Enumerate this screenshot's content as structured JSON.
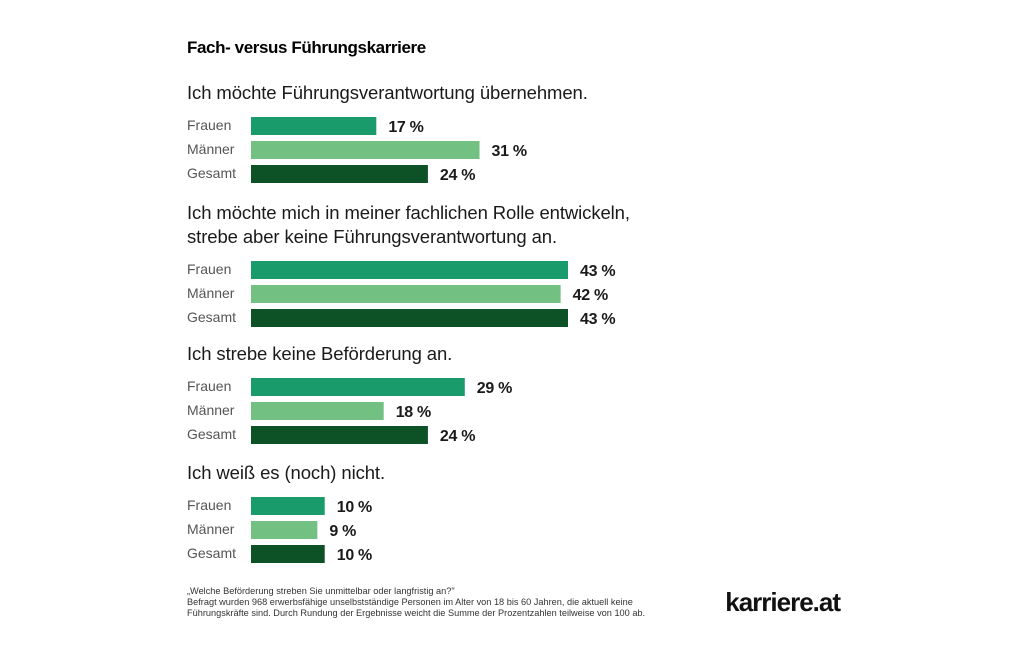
{
  "chart_data": {
    "type": "bar",
    "orientation": "horizontal",
    "title": "Fach- versus Führungskarriere",
    "unit": "%",
    "xlim": [
      0,
      43
    ],
    "series_names": [
      "Frauen",
      "Männer",
      "Gesamt"
    ],
    "series_colors": [
      "#1a9b6c",
      "#72c182",
      "#0d5227"
    ],
    "groups": [
      {
        "question": [
          "Ich möchte Führungsverantwortung übernehmen."
        ],
        "values": [
          17,
          31,
          24
        ],
        "value_labels": [
          "17 %",
          "31 %",
          "24 %"
        ]
      },
      {
        "question": [
          "Ich möchte mich in meiner fachlichen Rolle entwickeln,",
          "strebe aber keine Führungsverantwortung an."
        ],
        "values": [
          43,
          42,
          43
        ],
        "value_labels": [
          "43 %",
          "42 %",
          "43 %"
        ]
      },
      {
        "question": [
          "Ich strebe keine Beförderung an."
        ],
        "values": [
          29,
          18,
          24
        ],
        "value_labels": [
          "29 %",
          "18 %",
          "24 %"
        ]
      },
      {
        "question": [
          "Ich weiß es (noch) nicht."
        ],
        "values": [
          10,
          9,
          10
        ],
        "value_labels": [
          "10 %",
          "9 %",
          "10 %"
        ]
      }
    ],
    "footnote": [
      "„Welche Beförderung streben Sie unmittelbar oder langfristig an?\"",
      "Befragt wurden 968 erwerbsfähige unselbstständige Personen im Alter von 18 bis 60 Jahren, die aktuell keine",
      "Führungskräfte sind. Durch Rundung der Ergebnisse weicht die Summe der Prozentzahlen teilweise von 100 ab."
    ],
    "brand": "karriere.at"
  }
}
